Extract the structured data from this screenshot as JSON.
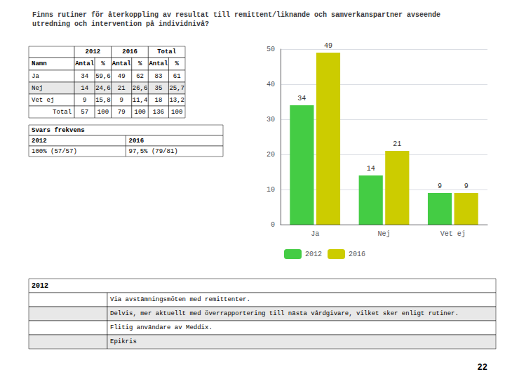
{
  "chart_data": {
    "type": "bar",
    "title": "Finns rutiner för återkoppling av resultat till remittent/liknande och samverkanspartner avseende\nutredning och intervention på individnivå?",
    "categories": [
      "Ja",
      "Nej",
      "Vet ej"
    ],
    "series": [
      {
        "name": "2012",
        "color": "#44cc44",
        "values": [
          34,
          14,
          9
        ]
      },
      {
        "name": "2016",
        "color": "#cccc00",
        "values": [
          49,
          21,
          9
        ]
      }
    ],
    "ylim": [
      0,
      50
    ],
    "yticks": [
      0,
      10,
      20,
      30,
      40,
      50
    ],
    "grid": true,
    "data_labels": true,
    "legend": "bottom"
  },
  "tables": [
    {
      "column_groups": [
        "2012",
        "2016",
        "Total"
      ],
      "columns": [
        "Namn",
        "Antal",
        "%",
        "Antal",
        "%",
        "Antal",
        "%"
      ],
      "rows": [
        [
          "Ja",
          "34",
          "59,6",
          "49",
          "62",
          "83",
          "61"
        ],
        [
          "Nej",
          "14",
          "24,6",
          "21",
          "26,6",
          "35",
          "25,7"
        ],
        [
          "Vet ej",
          "9",
          "15,8",
          "9",
          "11,4",
          "18",
          "13,2"
        ],
        [
          "Total",
          "57",
          "100",
          "79",
          "100",
          "136",
          "100"
        ]
      ]
    },
    {
      "header": "Svars frekvens",
      "columns": [
        "2012",
        "2016"
      ],
      "rows": [
        [
          "100% (57/57)",
          "97,5% (79/81)"
        ]
      ]
    },
    {
      "header": "2012",
      "rows": [
        "Via avstämningsmöten med remittenter.",
        "Delvis, mer aktuellt med överrapportering till nästa vårdgivare, vilket sker enligt rutiner.",
        "Flitig användare av Meddix.",
        "Epikris"
      ]
    }
  ],
  "page_number": "22"
}
